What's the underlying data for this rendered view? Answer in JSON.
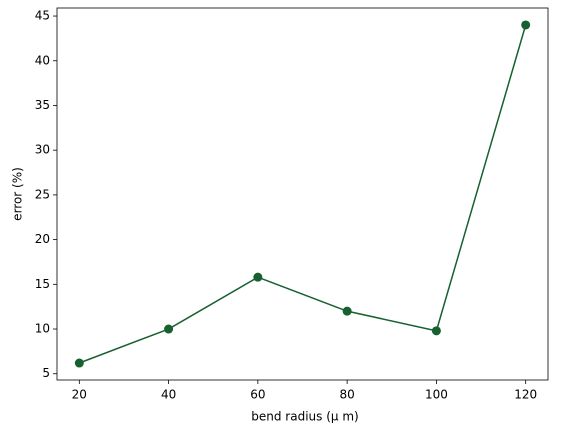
{
  "chart_data": {
    "type": "line",
    "x": [
      20,
      40,
      60,
      80,
      100,
      120
    ],
    "series": [
      {
        "name": null,
        "color": "#17602f",
        "values": [
          6.2,
          10.0,
          15.8,
          12.0,
          9.8,
          44.0
        ]
      }
    ],
    "xlabel": "bend radius (μ m)",
    "ylabel": "error (%)",
    "xlim": [
      15,
      125
    ],
    "xticks": [
      20,
      40,
      60,
      80,
      100,
      120
    ],
    "ylim": [
      4.3,
      45.9
    ],
    "yticks": [
      5,
      10,
      15,
      20,
      25,
      30,
      35,
      40,
      45
    ],
    "grid": false,
    "markers": true
  }
}
